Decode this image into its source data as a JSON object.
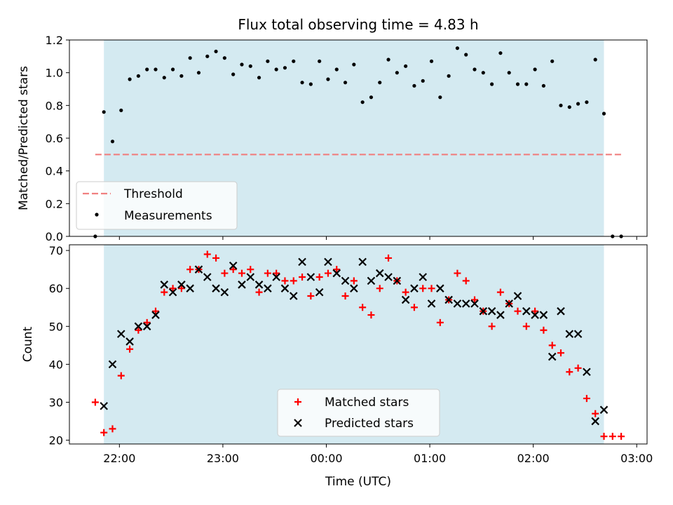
{
  "chart_data": [
    {
      "type": "scatter",
      "title": "Flux total observing time = 4.83 h",
      "xlabel": "",
      "ylabel": "Matched/Predicted stars",
      "xlim": [
        "21:31",
        "03:06"
      ],
      "ylim": [
        0,
        1.2
      ],
      "yticks": [
        "0.0",
        "0.2",
        "0.4",
        "0.6",
        "0.8",
        "1.0",
        "1.2"
      ],
      "shaded_span": [
        "21:51",
        "02:41"
      ],
      "shaded_color": "#d4eaf1",
      "legend_position": "lower-left",
      "threshold": {
        "name": "Threshold",
        "value": 0.5,
        "x_range": [
          "21:46",
          "02:51"
        ],
        "color": "#f08080"
      },
      "series": [
        {
          "name": "Measurements",
          "color": "#000000",
          "x": [
            "21:46",
            "21:51",
            "21:56",
            "22:01",
            "22:06",
            "22:11",
            "22:16",
            "22:21",
            "22:26",
            "22:31",
            "22:36",
            "22:41",
            "22:46",
            "22:51",
            "22:56",
            "23:01",
            "23:06",
            "23:11",
            "23:16",
            "23:21",
            "23:26",
            "23:31",
            "23:36",
            "23:41",
            "23:46",
            "23:51",
            "23:56",
            "00:01",
            "00:06",
            "00:11",
            "00:16",
            "00:21",
            "00:26",
            "00:31",
            "00:36",
            "00:41",
            "00:46",
            "00:51",
            "00:56",
            "01:01",
            "01:06",
            "01:11",
            "01:16",
            "01:21",
            "01:26",
            "01:31",
            "01:36",
            "01:41",
            "01:46",
            "01:51",
            "01:56",
            "02:01",
            "02:06",
            "02:11",
            "02:16",
            "02:21",
            "02:26",
            "02:31",
            "02:36",
            "02:41",
            "02:46",
            "02:51"
          ],
          "y": [
            0.0,
            0.76,
            0.58,
            0.77,
            0.96,
            0.98,
            1.02,
            1.02,
            0.97,
            1.02,
            0.98,
            1.09,
            1.0,
            1.1,
            1.13,
            1.09,
            0.99,
            1.05,
            1.04,
            0.97,
            1.07,
            1.02,
            1.03,
            1.07,
            0.94,
            0.93,
            1.07,
            0.96,
            1.02,
            0.94,
            1.05,
            0.82,
            0.85,
            0.94,
            1.08,
            1.0,
            1.04,
            0.92,
            0.95,
            1.07,
            0.85,
            0.98,
            1.15,
            1.11,
            1.02,
            1.0,
            0.93,
            1.12,
            1.0,
            0.93,
            0.93,
            1.02,
            0.92,
            1.07,
            0.8,
            0.79,
            0.81,
            0.82,
            1.08,
            0.75,
            0.0,
            0.0
          ]
        }
      ]
    },
    {
      "type": "scatter",
      "title": "",
      "xlabel": "Time (UTC)",
      "ylabel": "Count",
      "xlim": [
        "21:31",
        "03:06"
      ],
      "ylim": [
        19,
        71.5
      ],
      "yticks": [
        "20",
        "30",
        "40",
        "50",
        "60",
        "70"
      ],
      "xticks": [
        "22:00",
        "23:00",
        "00:00",
        "01:00",
        "02:00",
        "03:00"
      ],
      "shaded_span": [
        "21:51",
        "02:41"
      ],
      "legend_position": "lower-center",
      "series": [
        {
          "name": "Matched stars",
          "marker": "plus",
          "color": "#ff0000",
          "x": [
            "21:46",
            "21:51",
            "21:56",
            "22:01",
            "22:06",
            "22:11",
            "22:16",
            "22:21",
            "22:26",
            "22:31",
            "22:36",
            "22:41",
            "22:46",
            "22:51",
            "22:56",
            "23:01",
            "23:06",
            "23:11",
            "23:16",
            "23:21",
            "23:26",
            "23:31",
            "23:36",
            "23:41",
            "23:46",
            "23:51",
            "23:56",
            "00:01",
            "00:06",
            "00:11",
            "00:16",
            "00:21",
            "00:26",
            "00:31",
            "00:36",
            "00:41",
            "00:46",
            "00:51",
            "00:56",
            "01:01",
            "01:06",
            "01:11",
            "01:16",
            "01:21",
            "01:26",
            "01:31",
            "01:36",
            "01:41",
            "01:46",
            "01:51",
            "01:56",
            "02:01",
            "02:06",
            "02:11",
            "02:16",
            "02:21",
            "02:26",
            "02:31",
            "02:36",
            "02:41",
            "02:46",
            "02:51"
          ],
          "y": [
            30,
            22,
            23,
            37,
            44,
            49,
            51,
            54,
            59,
            60,
            60,
            65,
            65,
            69,
            68,
            64,
            65,
            64,
            65,
            59,
            64,
            64,
            62,
            62,
            63,
            58,
            63,
            64,
            65,
            58,
            62,
            55,
            53,
            60,
            68,
            62,
            59,
            55,
            60,
            60,
            51,
            57,
            64,
            62,
            57,
            54,
            50,
            59,
            56,
            54,
            50,
            54,
            49,
            45,
            43,
            38,
            39,
            31,
            27,
            21,
            21,
            21
          ]
        },
        {
          "name": "Predicted stars",
          "marker": "x",
          "color": "#000000",
          "x": [
            "21:51",
            "21:56",
            "22:01",
            "22:06",
            "22:11",
            "22:16",
            "22:21",
            "22:26",
            "22:31",
            "22:36",
            "22:41",
            "22:46",
            "22:51",
            "22:56",
            "23:01",
            "23:06",
            "23:11",
            "23:16",
            "23:21",
            "23:26",
            "23:31",
            "23:36",
            "23:41",
            "23:46",
            "23:51",
            "23:56",
            "00:01",
            "00:06",
            "00:11",
            "00:16",
            "00:21",
            "00:26",
            "00:31",
            "00:36",
            "00:41",
            "00:46",
            "00:51",
            "00:56",
            "01:01",
            "01:06",
            "01:11",
            "01:16",
            "01:21",
            "01:26",
            "01:31",
            "01:36",
            "01:41",
            "01:46",
            "01:51",
            "01:56",
            "02:01",
            "02:06",
            "02:11",
            "02:16",
            "02:21",
            "02:26",
            "02:31",
            "02:36",
            "02:41"
          ],
          "y": [
            29,
            40,
            48,
            46,
            50,
            50,
            53,
            61,
            59,
            61,
            60,
            65,
            63,
            60,
            59,
            66,
            61,
            63,
            61,
            60,
            63,
            60,
            58,
            67,
            63,
            59,
            67,
            64,
            62,
            60,
            67,
            62,
            64,
            63,
            62,
            57,
            60,
            63,
            56,
            60,
            57,
            56,
            56,
            56,
            54,
            54,
            53,
            56,
            58,
            54,
            53,
            53,
            42,
            54,
            48,
            48,
            38,
            25,
            28
          ]
        }
      ]
    }
  ]
}
